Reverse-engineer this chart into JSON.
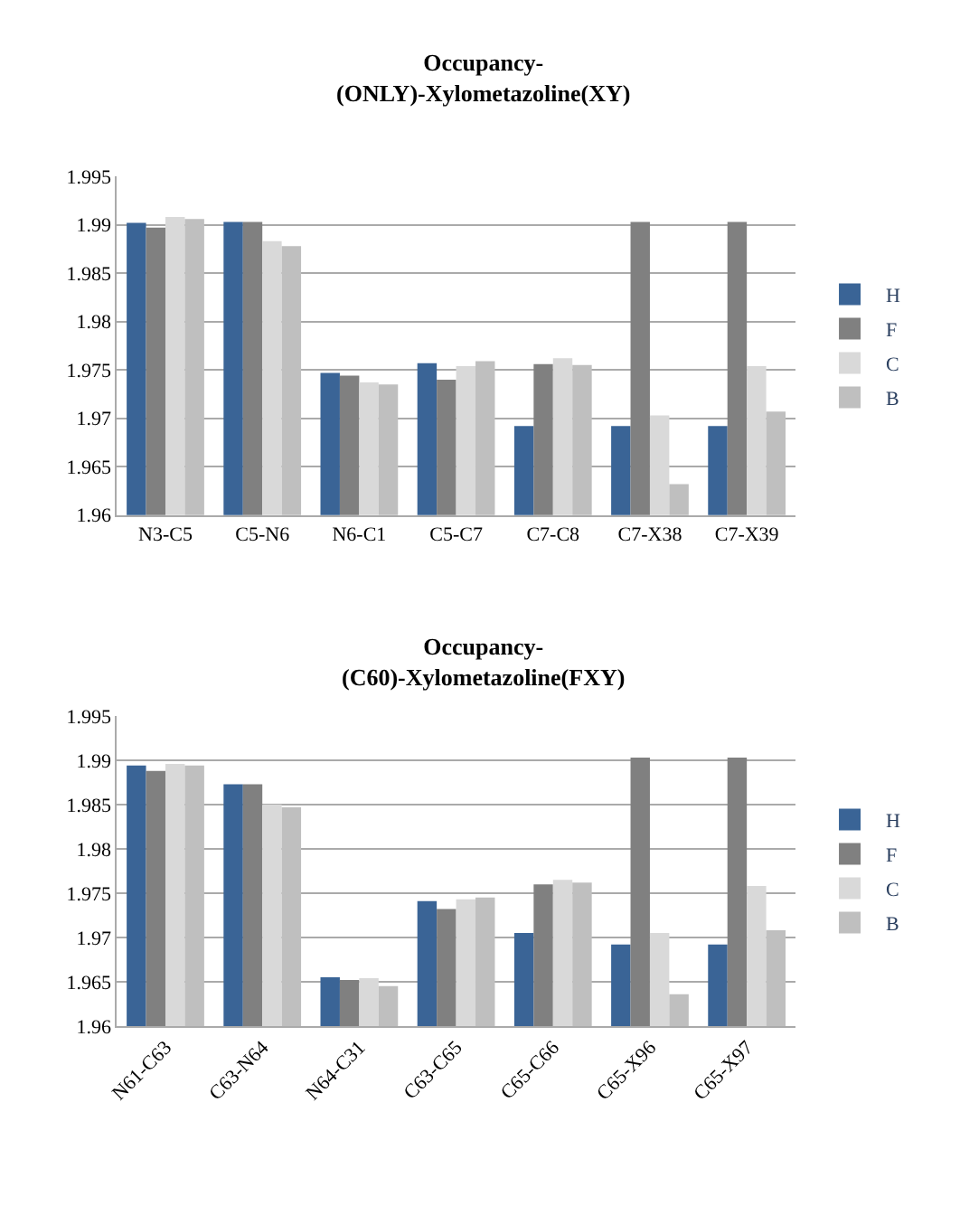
{
  "chart_data": [
    {
      "type": "bar",
      "title": "Occupancy-\n(ONLY)-Xylometazoline(XY)",
      "categories": [
        "N3-C5",
        "C5-N6",
        "N6-C1",
        "C5-C7",
        "C7-C8",
        "C7-X38",
        "C7-X39"
      ],
      "series": [
        {
          "name": "H",
          "color": "#3a6496",
          "values": [
            1.9902,
            1.9903,
            1.9747,
            1.9757,
            1.9692,
            1.9692,
            1.9692
          ]
        },
        {
          "name": "F",
          "color": "#808080",
          "values": [
            1.9897,
            1.9903,
            1.9744,
            1.974,
            1.9756,
            1.9903,
            1.9903
          ]
        },
        {
          "name": "C",
          "color": "#d9d9d9",
          "values": [
            1.9908,
            1.9883,
            1.9737,
            1.9754,
            1.9762,
            1.9703,
            1.9754
          ]
        },
        {
          "name": "B",
          "color": "#bfbfbf",
          "values": [
            1.9906,
            1.9878,
            1.9735,
            1.9759,
            1.9755,
            1.9632,
            1.9707
          ]
        }
      ],
      "ylim": [
        1.96,
        1.995
      ],
      "yticks": [
        1.96,
        1.965,
        1.97,
        1.975,
        1.98,
        1.985,
        1.99,
        1.995
      ],
      "grid": "y",
      "legend": "right"
    },
    {
      "type": "bar",
      "title": "Occupancy-\n(C60)-Xylometazoline(FXY)",
      "categories": [
        "N61-C63",
        "C63-N64",
        "N64-C31",
        "C63-C65",
        "C65-C66",
        "C65-X96",
        "C65-X97"
      ],
      "series": [
        {
          "name": "H",
          "color": "#3a6496",
          "values": [
            1.9894,
            1.9873,
            1.9655,
            1.9741,
            1.9705,
            1.9692,
            1.9692
          ]
        },
        {
          "name": "F",
          "color": "#808080",
          "values": [
            1.9888,
            1.9873,
            1.9652,
            1.9732,
            1.976,
            1.9903,
            1.9903
          ]
        },
        {
          "name": "C",
          "color": "#d9d9d9",
          "values": [
            1.9896,
            1.985,
            1.9654,
            1.9743,
            1.9765,
            1.9705,
            1.9758
          ]
        },
        {
          "name": "B",
          "color": "#bfbfbf",
          "values": [
            1.9894,
            1.9847,
            1.9645,
            1.9745,
            1.9762,
            1.9636,
            1.9708
          ]
        }
      ],
      "ylim": [
        1.96,
        1.995
      ],
      "yticks": [
        1.96,
        1.965,
        1.97,
        1.975,
        1.98,
        1.985,
        1.99,
        1.995
      ],
      "grid": "y",
      "legend": "right"
    }
  ]
}
